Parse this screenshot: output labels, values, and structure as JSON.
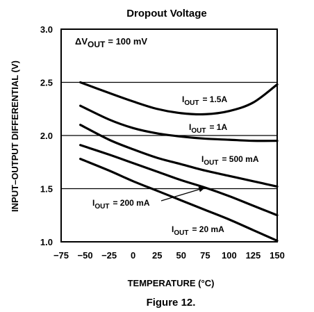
{
  "chart_data": {
    "type": "line",
    "title": "Dropout Voltage",
    "caption": "Figure 12.",
    "xlabel": "TEMPERATURE (°C)",
    "ylabel": "INPUT–OUTPUT DIFFERENTIAL (V)",
    "xlim": [
      -75,
      150
    ],
    "ylim": [
      1.0,
      3.0
    ],
    "x_ticks": [
      "−75",
      "−50",
      "−25",
      "0",
      "25",
      "50",
      "75",
      "100",
      "125",
      "150"
    ],
    "y_ticks": [
      "1.0",
      "1.5",
      "2.0",
      "2.5",
      "3.0"
    ],
    "grid": "horizontal",
    "annotation": {
      "prefix": "ΔV",
      "sub": "OUT",
      "suffix": "= 100 mV"
    },
    "series": [
      {
        "name": "IOUT = 1.5A",
        "label_base": "I",
        "label_sub": "OUT",
        "label_value": "= 1.5A",
        "x": [
          -55,
          -25,
          0,
          25,
          50,
          75,
          100,
          125,
          150
        ],
        "y": [
          2.5,
          2.4,
          2.32,
          2.25,
          2.21,
          2.2,
          2.23,
          2.31,
          2.48
        ]
      },
      {
        "name": "IOUT = 1A",
        "label_base": "I",
        "label_sub": "OUT",
        "label_value": "= 1A",
        "x": [
          -55,
          -25,
          0,
          25,
          50,
          75,
          100,
          125,
          150
        ],
        "y": [
          2.28,
          2.15,
          2.07,
          2.02,
          1.99,
          1.97,
          1.96,
          1.95,
          1.95
        ]
      },
      {
        "name": "IOUT = 500 mA",
        "label_base": "I",
        "label_sub": "OUT",
        "label_value": "= 500 mA",
        "x": [
          -55,
          -25,
          0,
          25,
          50,
          75,
          100,
          125,
          150
        ],
        "y": [
          2.1,
          1.96,
          1.87,
          1.79,
          1.73,
          1.67,
          1.62,
          1.57,
          1.52
        ]
      },
      {
        "name": "IOUT = 200 mA",
        "label_base": "I",
        "label_sub": "OUT",
        "label_value": "= 200 mA",
        "x": [
          -55,
          -25,
          0,
          25,
          50,
          75,
          100,
          125,
          150
        ],
        "y": [
          1.91,
          1.82,
          1.74,
          1.66,
          1.58,
          1.51,
          1.43,
          1.34,
          1.25
        ]
      },
      {
        "name": "IOUT = 20 mA",
        "label_base": "I",
        "label_sub": "OUT",
        "label_value": "= 20 mA",
        "x": [
          -55,
          -25,
          0,
          25,
          50,
          75,
          100,
          125,
          150
        ],
        "y": [
          1.78,
          1.67,
          1.57,
          1.48,
          1.39,
          1.3,
          1.21,
          1.11,
          1.01
        ]
      }
    ],
    "colors": {
      "line": "#000000",
      "grid": "#000000",
      "background": "#ffffff"
    }
  }
}
